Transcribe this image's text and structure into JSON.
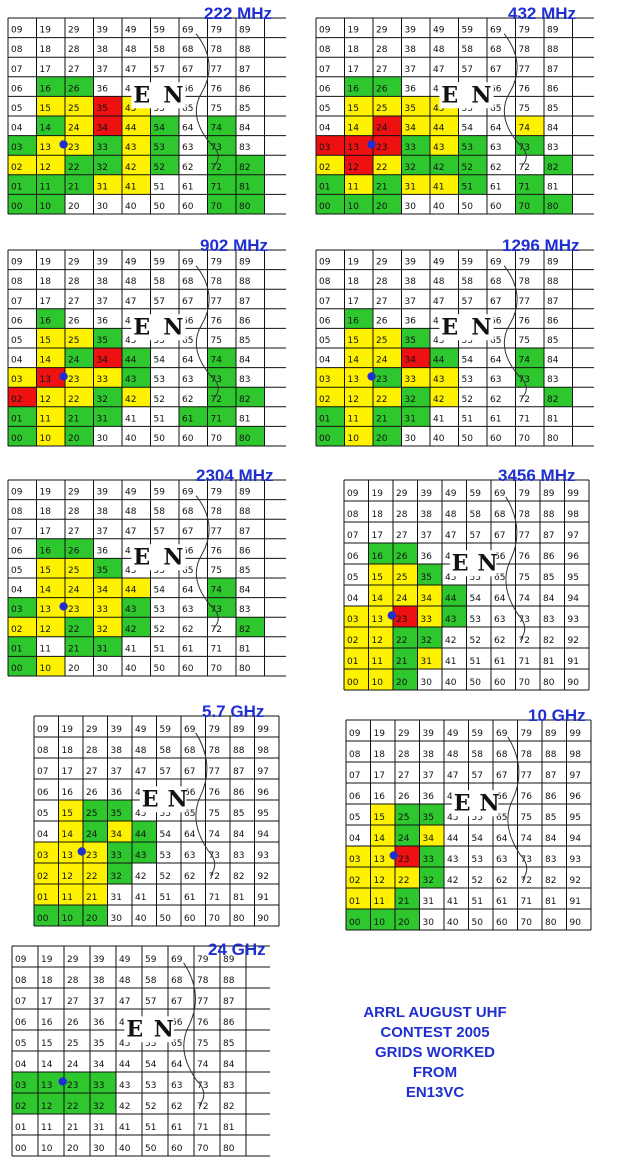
{
  "title_lines": [
    "ARRL AUGUST UHF",
    "CONTEST 2005",
    "GRIDS WORKED",
    "FROM",
    "EN13VC"
  ],
  "home_grid": "EN13",
  "colors": {
    "green": "#2ec82e",
    "yellow": "#fff200",
    "red": "#ee1111",
    "home_dot": "#1f2fd0"
  },
  "maps": [
    {
      "band": "222 MHz",
      "grids": {
        "EN15": "yellow",
        "EN16": "green",
        "EN25": "yellow",
        "EN26": "green",
        "EN35": "red",
        "EN45": "yellow",
        "EN14": "green",
        "EN24": "yellow",
        "EN34": "red",
        "EN44": "yellow",
        "EN03": "green",
        "EN13": "yellow",
        "EN23": "yellow",
        "EN33": "green",
        "EN43": "yellow",
        "EN02": "yellow",
        "EN12": "yellow",
        "EN22": "green",
        "EN32": "green",
        "EN42": "yellow",
        "EN01": "green",
        "EN11": "green",
        "EN21": "green",
        "EN31": "yellow",
        "EN41": "yellow",
        "EN54": "green",
        "EN53": "green",
        "EN52": "green",
        "EN74": "green",
        "EN73": "green",
        "EN72": "green",
        "EN82": "green",
        "EN81": "green",
        "EN00": "green",
        "EN10": "green",
        "EN71": "green",
        "EN70": "green",
        "EN80": "green"
      }
    },
    {
      "band": "432 MHz",
      "grids": {
        "EN15": "yellow",
        "EN16": "green",
        "EN25": "yellow",
        "EN26": "green",
        "EN35": "yellow",
        "EN45": "yellow",
        "EN14": "yellow",
        "EN24": "red",
        "EN34": "yellow",
        "EN44": "yellow",
        "EN74": "yellow",
        "EN03": "red",
        "EN13": "red",
        "EN23": "red",
        "EN33": "green",
        "EN43": "yellow",
        "EN53": "green",
        "EN73": "green",
        "EN02": "yellow",
        "EN12": "red",
        "EN22": "yellow",
        "EN32": "green",
        "EN42": "green",
        "EN52": "green",
        "EN82": "green",
        "EN01": "green",
        "EN11": "yellow",
        "EN21": "green",
        "EN31": "yellow",
        "EN41": "yellow",
        "EN51": "green",
        "EN71": "green",
        "EN00": "green",
        "EN10": "green",
        "EN20": "green",
        "EN70": "green",
        "EN80": "green"
      }
    },
    {
      "band": "902 MHz",
      "grids": {
        "EN15": "yellow",
        "EN16": "green",
        "EN25": "yellow",
        "EN35": "green",
        "EN14": "yellow",
        "EN24": "green",
        "EN34": "red",
        "EN44": "green",
        "EN03": "yellow",
        "EN13": "red",
        "EN23": "yellow",
        "EN33": "yellow",
        "EN43": "green",
        "EN02": "red",
        "EN12": "yellow",
        "EN22": "yellow",
        "EN32": "green",
        "EN42": "yellow",
        "EN01": "green",
        "EN11": "yellow",
        "EN21": "green",
        "EN31": "green",
        "EN00": "green",
        "EN10": "yellow",
        "EN20": "green",
        "EN61": "green",
        "EN71": "green",
        "EN72": "green",
        "EN73": "green",
        "EN74": "green",
        "EN82": "green",
        "EN80": "green"
      }
    },
    {
      "band": "1296 MHz",
      "grids": {
        "EN15": "yellow",
        "EN16": "green",
        "EN25": "yellow",
        "EN35": "green",
        "EN14": "yellow",
        "EN24": "yellow",
        "EN34": "red",
        "EN44": "green",
        "EN03": "yellow",
        "EN13": "yellow",
        "EN23": "green",
        "EN33": "yellow",
        "EN43": "yellow",
        "EN02": "yellow",
        "EN12": "yellow",
        "EN22": "yellow",
        "EN32": "green",
        "EN42": "yellow",
        "EN01": "green",
        "EN11": "yellow",
        "EN21": "green",
        "EN31": "green",
        "EN00": "green",
        "EN10": "yellow",
        "EN20": "green",
        "EN73": "green",
        "EN74": "green",
        "EN82": "green"
      }
    },
    {
      "band": "2304 MHz",
      "grids": {
        "EN15": "yellow",
        "EN16": "green",
        "EN25": "yellow",
        "EN26": "green",
        "EN35": "green",
        "EN14": "yellow",
        "EN24": "yellow",
        "EN34": "yellow",
        "EN44": "yellow",
        "EN03": "green",
        "EN13": "yellow",
        "EN23": "yellow",
        "EN33": "yellow",
        "EN43": "green",
        "EN02": "yellow",
        "EN12": "yellow",
        "EN22": "green",
        "EN32": "yellow",
        "EN42": "green",
        "EN01": "green",
        "EN21": "green",
        "EN31": "green",
        "EN00": "green",
        "EN10": "yellow",
        "EN73": "green",
        "EN74": "green",
        "EN82": "green"
      }
    },
    {
      "band": "3456 MHz",
      "grids": {
        "EN15": "yellow",
        "EN16": "green",
        "EN25": "yellow",
        "EN26": "green",
        "EN35": "green",
        "EN14": "yellow",
        "EN24": "yellow",
        "EN34": "yellow",
        "EN44": "green",
        "EN03": "yellow",
        "EN13": "yellow",
        "EN23": "red",
        "EN33": "yellow",
        "EN43": "green",
        "EN02": "yellow",
        "EN12": "yellow",
        "EN22": "green",
        "EN32": "green",
        "EN01": "yellow",
        "EN11": "yellow",
        "EN21": "green",
        "EN31": "yellow",
        "EN00": "yellow",
        "EN10": "yellow",
        "EN20": "green"
      }
    },
    {
      "band": "5.7 GHz",
      "grids": {
        "EN15": "yellow",
        "EN25": "green",
        "EN35": "green",
        "EN14": "yellow",
        "EN24": "green",
        "EN34": "yellow",
        "EN44": "green",
        "EN03": "yellow",
        "EN13": "yellow",
        "EN23": "yellow",
        "EN33": "green",
        "EN43": "green",
        "EN02": "yellow",
        "EN12": "yellow",
        "EN22": "yellow",
        "EN32": "green",
        "EN01": "yellow",
        "EN11": "yellow",
        "EN21": "yellow",
        "EN00": "green",
        "EN10": "green",
        "EN20": "green"
      }
    },
    {
      "band": "10 GHz",
      "grids": {
        "EN15": "yellow",
        "EN25": "green",
        "EN35": "green",
        "EN14": "yellow",
        "EN24": "green",
        "EN34": "yellow",
        "EN03": "yellow",
        "EN13": "yellow",
        "EN23": "red",
        "EN33": "green",
        "EN02": "yellow",
        "EN12": "yellow",
        "EN22": "yellow",
        "EN32": "green",
        "EN01": "yellow",
        "EN11": "yellow",
        "EN21": "green",
        "EN00": "green",
        "EN10": "green",
        "EN20": "green"
      }
    },
    {
      "band": "24 GHz",
      "grids": {
        "EN03": "green",
        "EN13": "green",
        "EN23": "green",
        "EN33": "green",
        "EN02": "green",
        "EN12": "green",
        "EN22": "green",
        "EN32": "green"
      }
    }
  ]
}
